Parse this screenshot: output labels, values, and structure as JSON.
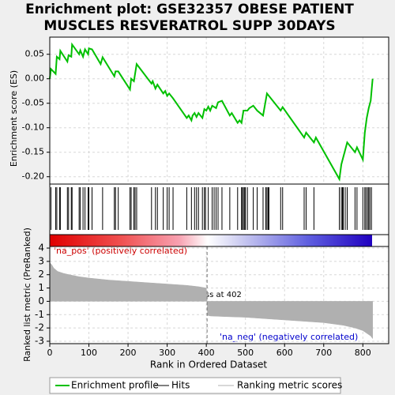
{
  "chart_data": {
    "type": "gsea",
    "title": [
      "Enrichment plot: GSE32357 OBESE PATIENT",
      "MUSCLES RESVERATROL SUPP 30DAYS"
    ],
    "x_label": "Rank in Ordered Dataset",
    "xlim": [
      0,
      866
    ],
    "xticks": [
      0,
      100,
      200,
      300,
      400,
      500,
      600,
      700,
      800
    ],
    "grid": true,
    "es": {
      "y_label": "Enrichment score (ES)",
      "name": "Enrichment profile",
      "color": "#00c000",
      "ylim": [
        -0.215,
        0.085
      ],
      "yticks": [
        0.05,
        {
          "value": 0,
          "label": "0.00"
        },
        -0.05,
        {
          "value": -0.1,
          "label": "-0.10"
        },
        -0.15,
        {
          "value": -0.2,
          "label": "-0.20"
        }
      ],
      "x": [
        0,
        3,
        15,
        18,
        25,
        27,
        45,
        48,
        55,
        57,
        75,
        78,
        85,
        90,
        98,
        100,
        108,
        130,
        135,
        165,
        168,
        175,
        205,
        208,
        215,
        222,
        260,
        263,
        270,
        275,
        290,
        295,
        300,
        305,
        315,
        350,
        355,
        362,
        365,
        370,
        375,
        380,
        390,
        395,
        400,
        405,
        410,
        415,
        425,
        430,
        440,
        460,
        465,
        480,
        485,
        490,
        495,
        505,
        510,
        520,
        530,
        545,
        555,
        590,
        595,
        650,
        655,
        675,
        680,
        740,
        745,
        750,
        760,
        780,
        785,
        800,
        805,
        810,
        815,
        820,
        825
      ],
      "values": [
        0,
        0.02,
        0.01,
        0.045,
        0.04,
        0.057,
        0.035,
        0.048,
        0.045,
        0.07,
        0.05,
        0.058,
        0.045,
        0.06,
        0.05,
        0.062,
        0.06,
        0.03,
        0.044,
        0.005,
        0.015,
        0.015,
        -0.022,
        0,
        -0.005,
        0.03,
        -0.01,
        -0.005,
        -0.02,
        -0.012,
        -0.03,
        -0.025,
        -0.035,
        -0.03,
        -0.04,
        -0.08,
        -0.075,
        -0.085,
        -0.075,
        -0.07,
        -0.078,
        -0.07,
        -0.08,
        -0.062,
        -0.065,
        -0.057,
        -0.065,
        -0.055,
        -0.06,
        -0.048,
        -0.045,
        -0.075,
        -0.07,
        -0.09,
        -0.085,
        -0.09,
        -0.065,
        -0.065,
        -0.06,
        -0.055,
        -0.065,
        -0.075,
        -0.03,
        -0.065,
        -0.058,
        -0.12,
        -0.11,
        -0.13,
        -0.12,
        -0.205,
        -0.175,
        -0.16,
        -0.13,
        -0.15,
        -0.14,
        -0.165,
        -0.11,
        -0.08,
        -0.06,
        -0.045,
        0
      ]
    },
    "hits_name": "Hits",
    "hits": [
      3,
      15,
      18,
      25,
      27,
      45,
      48,
      55,
      57,
      75,
      78,
      85,
      90,
      98,
      100,
      108,
      135,
      165,
      168,
      175,
      205,
      208,
      215,
      218,
      222,
      260,
      270,
      275,
      290,
      300,
      305,
      315,
      350,
      362,
      370,
      375,
      380,
      390,
      395,
      398,
      405,
      415,
      420,
      425,
      430,
      440,
      460,
      480,
      490,
      492,
      495,
      498,
      500,
      505,
      520,
      530,
      545,
      552,
      555,
      558,
      560,
      590,
      595,
      650,
      655,
      675,
      740,
      745,
      748,
      750,
      755,
      760,
      780,
      785,
      800,
      805,
      808,
      812,
      815,
      818,
      822
    ],
    "metric": {
      "name": "Ranking metric scores",
      "y_label": "Ranked list metric (PreRanked)",
      "color": "#b0b0b0",
      "ylim": [
        -3.18,
        4.12
      ],
      "yticks": [
        4,
        3,
        2,
        1,
        0,
        -1,
        -2,
        -3
      ],
      "x": [
        0,
        5,
        10,
        20,
        35,
        50,
        75,
        100,
        150,
        200,
        250,
        300,
        350,
        380,
        400,
        402,
        403,
        410,
        450,
        500,
        550,
        600,
        650,
        700,
        750,
        780,
        800,
        810,
        820,
        825
      ],
      "values": [
        2.9,
        2.75,
        2.5,
        2.25,
        2.1,
        2.0,
        1.85,
        1.75,
        1.6,
        1.5,
        1.4,
        1.3,
        1.2,
        1.1,
        1.0,
        0,
        -1.05,
        -1.1,
        -1.15,
        -1.2,
        -1.3,
        -1.4,
        -1.5,
        -1.6,
        -1.8,
        -2.0,
        -2.2,
        -2.4,
        -2.6,
        -2.8
      ],
      "zero_cross": 402,
      "zero_cross_label": "Zero cross at 402",
      "pos_label": "'na_pos' (positively correlated)",
      "neg_label": "'na_neg' (negatively correlated)"
    }
  }
}
